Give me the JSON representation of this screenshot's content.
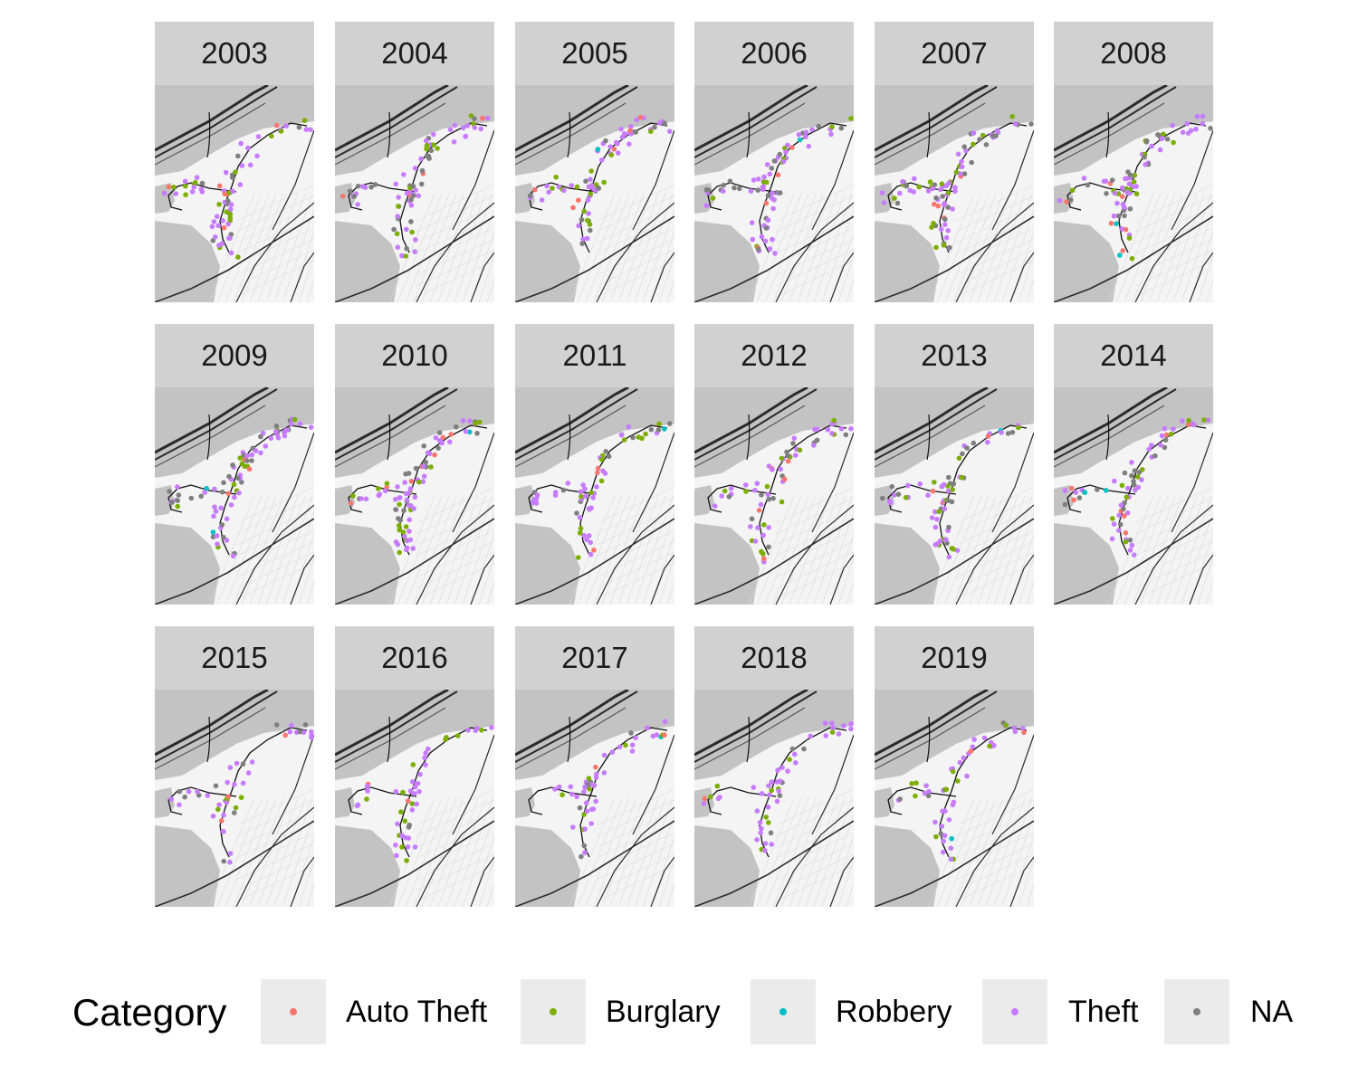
{
  "facet_years": [
    "2003",
    "2004",
    "2005",
    "2006",
    "2007",
    "2008",
    "2009",
    "2010",
    "2011",
    "2012",
    "2013",
    "2014",
    "2015",
    "2016",
    "2017",
    "2018",
    "2019"
  ],
  "legend": {
    "title": "Category",
    "items": [
      {
        "label": "Auto Theft",
        "color": "#f8766d"
      },
      {
        "label": "Burglary",
        "color": "#7cae00"
      },
      {
        "label": "Robbery",
        "color": "#00bfc4"
      },
      {
        "label": "Theft",
        "color": "#c77cff"
      },
      {
        "label": "NA",
        "color": "#7f7f7f"
      }
    ]
  },
  "map_colors": {
    "park": "#c3c3c3",
    "land": "#f4f4f4",
    "road": "#2b2b2b",
    "minor_road": "#ffffff"
  }
}
